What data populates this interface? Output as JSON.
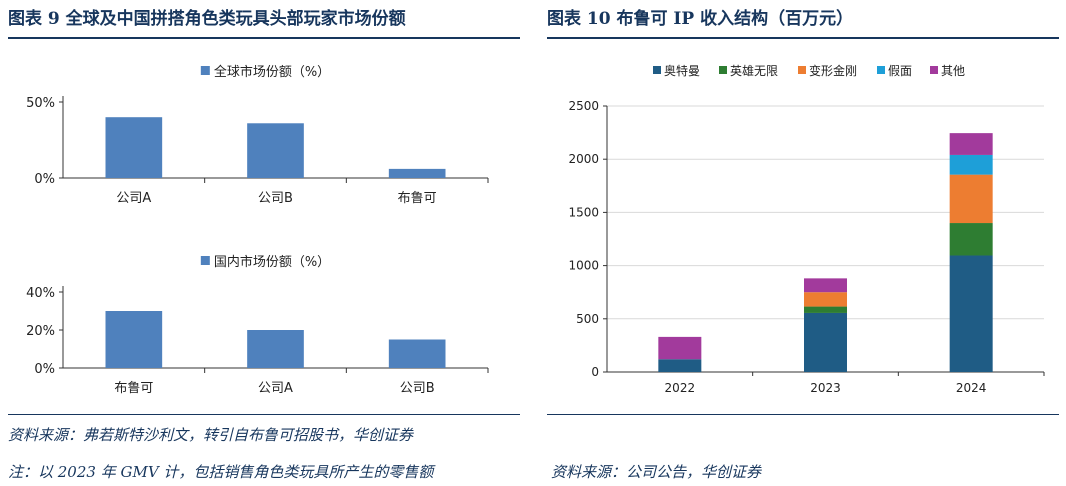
{
  "left": {
    "figure_title": "图表 9   全球及中国拼搭角色类玩具头部玩家市场份额",
    "source": "资料来源：弗若斯特沙利文，转引自布鲁可招股书，华创证券",
    "note": "注：以 2023 年 GMV 计，包括销售角色类玩具所产生的零售额"
  },
  "right": {
    "figure_title": "图表 10   布鲁可 IP 收入结构（百万元）",
    "source": "资料来源：公司公告，华创证券"
  },
  "colors": {
    "title": "#17365d",
    "bar_blue": "#4f81bd",
    "ultraman": "#1f5c85",
    "hero_infinite": "#2e7d32",
    "transformers": "#ed7d31",
    "kamen_rider": "#1e9fd8",
    "others": "#a23a9c"
  },
  "chart_data": [
    {
      "type": "bar",
      "legend": "全球市场份额（%）",
      "categories": [
        "公司A",
        "公司B",
        "布鲁可"
      ],
      "values": [
        40,
        36,
        6
      ],
      "ylim": [
        0,
        50
      ],
      "yticks": [
        "0%",
        "50%"
      ],
      "ytick_values": [
        0,
        50
      ],
      "legend_position": "top-center"
    },
    {
      "type": "bar",
      "legend": "国内市场份额（%）",
      "categories": [
        "布鲁可",
        "公司A",
        "公司B"
      ],
      "values": [
        30,
        20,
        15
      ],
      "ylim": [
        0,
        40
      ],
      "yticks": [
        "0%",
        "20%",
        "40%"
      ],
      "ytick_values": [
        0,
        20,
        40
      ],
      "legend_position": "top-center"
    },
    {
      "type": "bar",
      "stacked": true,
      "categories": [
        "2022",
        "2023",
        "2024"
      ],
      "series": [
        {
          "name": "奥特曼",
          "color": "ultraman",
          "values": [
            120,
            555,
            1095
          ]
        },
        {
          "name": "英雄无限",
          "color": "hero_infinite",
          "values": [
            0,
            60,
            305
          ]
        },
        {
          "name": "变形金刚",
          "color": "transformers",
          "values": [
            0,
            135,
            455
          ]
        },
        {
          "name": "假面",
          "color": "kamen_rider",
          "values": [
            0,
            0,
            185
          ]
        },
        {
          "name": "其他",
          "color": "others",
          "values": [
            210,
            130,
            205
          ]
        }
      ],
      "ylim": [
        0,
        2500
      ],
      "yticks": [
        "0",
        "500",
        "1000",
        "1500",
        "2000",
        "2500"
      ],
      "ytick_values": [
        0,
        500,
        1000,
        1500,
        2000,
        2500
      ],
      "grid": true,
      "legend_position": "top-center"
    }
  ]
}
